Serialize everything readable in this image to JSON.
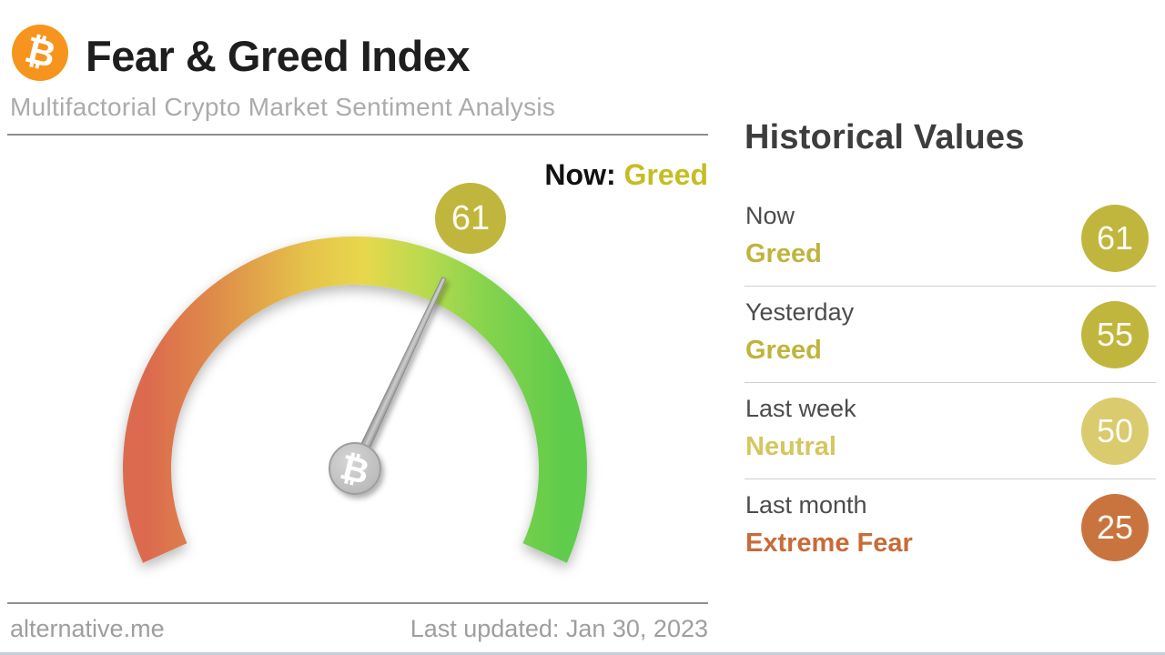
{
  "header": {
    "title": "Fear & Greed Index",
    "subtitle": "Multifactorial Crypto Market Sentiment Analysis",
    "logo": {
      "symbol": "₿",
      "bg_color": "#f7941d"
    }
  },
  "gauge": {
    "status_label": "Now:",
    "status_value": "Greed",
    "status_color": "#c5bd23",
    "value": 61,
    "min": 0,
    "max": 100,
    "badge_color": "#c1b63d",
    "arc_colors": [
      "#dc6a4f",
      "#df8f4a",
      "#e5c24b",
      "#e8d74d",
      "#bcda4f",
      "#84d34e",
      "#60cc4b"
    ],
    "pivot_symbol": "₿"
  },
  "historical": {
    "title": "Historical Values",
    "rows": [
      {
        "label": "Now",
        "value": "Greed",
        "score": "61",
        "badge_color": "#c1b63d",
        "value_color": "#bfb43c"
      },
      {
        "label": "Yesterday",
        "value": "Greed",
        "score": "55",
        "badge_color": "#c1b63d",
        "value_color": "#bfb43c"
      },
      {
        "label": "Last week",
        "value": "Neutral",
        "score": "50",
        "badge_color": "#d9cb6e",
        "value_color": "#d5c65f"
      },
      {
        "label": "Last month",
        "value": "Extreme Fear",
        "score": "25",
        "badge_color": "#c9743f",
        "value_color": "#c86b38"
      }
    ]
  },
  "footer": {
    "site": "alternative.me",
    "last_updated": "Last updated: Jan 30, 2023"
  },
  "chart_data": {
    "type": "gauge",
    "title": "Fear & Greed Index",
    "subtitle": "Multifactorial Crypto Market Sentiment Analysis",
    "current": {
      "value": 61,
      "classification": "Greed"
    },
    "range": [
      0,
      100
    ],
    "scale": "0 = Extreme Fear (red end of arc) to 100 = Extreme Greed (green end of arc), needle at 61",
    "historical": [
      {
        "period": "Now",
        "value": 61,
        "classification": "Greed"
      },
      {
        "period": "Yesterday",
        "value": 55,
        "classification": "Greed"
      },
      {
        "period": "Last week",
        "value": 50,
        "classification": "Neutral"
      },
      {
        "period": "Last month",
        "value": 25,
        "classification": "Extreme Fear"
      }
    ],
    "last_updated": "Jan 30, 2023",
    "source": "alternative.me"
  }
}
